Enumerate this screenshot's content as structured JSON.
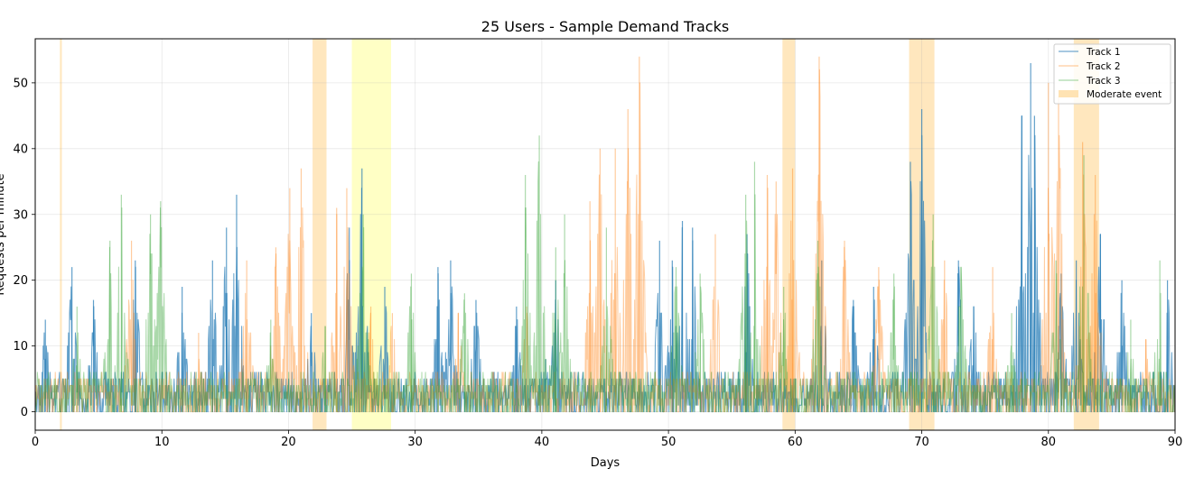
{
  "chart_data": {
    "type": "line",
    "title": "25 Users - Sample Demand Tracks",
    "xlabel": "Days",
    "ylabel": "Requests per minute",
    "xlim": [
      0,
      90
    ],
    "ylim": [
      -2.8,
      56.7
    ],
    "xticks": [
      0,
      10,
      20,
      30,
      40,
      50,
      60,
      70,
      80,
      90
    ],
    "yticks": [
      0,
      10,
      20,
      30,
      40,
      50
    ],
    "grid": true,
    "legend_position": "top-right",
    "series": [
      {
        "name": "Track 1",
        "color": "#1f77b4",
        "opacity": 0.7,
        "peaks": [
          [
            0.8,
            14
          ],
          [
            2.9,
            22
          ],
          [
            4.6,
            17
          ],
          [
            7.9,
            23
          ],
          [
            11.6,
            19
          ],
          [
            14.0,
            23
          ],
          [
            15.1,
            28
          ],
          [
            15.9,
            33
          ],
          [
            21.8,
            15
          ],
          [
            24.8,
            28
          ],
          [
            25.8,
            37
          ],
          [
            27.6,
            19
          ],
          [
            31.8,
            22
          ],
          [
            32.8,
            23
          ],
          [
            34.8,
            17
          ],
          [
            38.0,
            16
          ],
          [
            40.3,
            8
          ],
          [
            41.1,
            20
          ],
          [
            49.3,
            26
          ],
          [
            50.3,
            23
          ],
          [
            51.1,
            29
          ],
          [
            51.9,
            28
          ],
          [
            56.2,
            27
          ],
          [
            62.1,
            23
          ],
          [
            64.6,
            17
          ],
          [
            66.2,
            19
          ],
          [
            69.1,
            38
          ],
          [
            70.0,
            46
          ],
          [
            72.9,
            23
          ],
          [
            74.1,
            16
          ],
          [
            77.9,
            45
          ],
          [
            78.6,
            53
          ],
          [
            78.9,
            45
          ],
          [
            81.0,
            21
          ],
          [
            82.2,
            23
          ],
          [
            84.1,
            27
          ],
          [
            85.8,
            20
          ],
          [
            89.4,
            20
          ]
        ]
      },
      {
        "name": "Track 2",
        "color": "#ff7f0e",
        "opacity": 0.4,
        "peaks": [
          [
            7.6,
            26
          ],
          [
            12.9,
            12
          ],
          [
            16.7,
            23
          ],
          [
            19.0,
            25
          ],
          [
            20.1,
            34
          ],
          [
            21.0,
            37
          ],
          [
            23.8,
            31
          ],
          [
            24.6,
            34
          ],
          [
            26.5,
            16
          ],
          [
            28.2,
            15
          ],
          [
            33.4,
            15
          ],
          [
            38.8,
            16
          ],
          [
            43.8,
            32
          ],
          [
            44.6,
            40
          ],
          [
            45.8,
            40
          ],
          [
            46.8,
            46
          ],
          [
            47.7,
            54
          ],
          [
            53.7,
            27
          ],
          [
            57.8,
            36
          ],
          [
            58.5,
            35
          ],
          [
            59.8,
            37
          ],
          [
            61.9,
            54
          ],
          [
            63.9,
            26
          ],
          [
            66.6,
            22
          ],
          [
            71.8,
            23
          ],
          [
            75.6,
            22
          ],
          [
            80.0,
            50
          ],
          [
            80.8,
            48
          ],
          [
            82.7,
            41
          ],
          [
            83.7,
            36
          ],
          [
            87.7,
            11
          ]
        ]
      },
      {
        "name": "Track 3",
        "color": "#2ca02c",
        "opacity": 0.4,
        "peaks": [
          [
            3.3,
            16
          ],
          [
            5.9,
            26
          ],
          [
            6.8,
            33
          ],
          [
            9.1,
            30
          ],
          [
            9.9,
            32
          ],
          [
            18.6,
            14
          ],
          [
            22.9,
            13
          ],
          [
            25.9,
            30
          ],
          [
            29.7,
            21
          ],
          [
            33.9,
            18
          ],
          [
            38.7,
            36
          ],
          [
            39.8,
            42
          ],
          [
            41.1,
            25
          ],
          [
            41.8,
            30
          ],
          [
            45.1,
            28
          ],
          [
            50.6,
            22
          ],
          [
            52.5,
            21
          ],
          [
            56.1,
            33
          ],
          [
            56.8,
            38
          ],
          [
            59.1,
            19
          ],
          [
            61.8,
            26
          ],
          [
            67.8,
            21
          ],
          [
            70.9,
            30
          ],
          [
            73.1,
            22
          ],
          [
            77.1,
            15
          ],
          [
            80.6,
            23
          ],
          [
            82.8,
            39
          ],
          [
            86.5,
            14
          ],
          [
            88.8,
            23
          ]
        ]
      }
    ],
    "events": [
      {
        "name": "Moderate event",
        "start": 1.95,
        "end": 2.1,
        "color": "#ffe3b3"
      },
      {
        "name": "Moderate event",
        "start": 21.9,
        "end": 23.0,
        "color": "#ffe3b3"
      },
      {
        "name": "",
        "start": 25.0,
        "end": 28.1,
        "color": "#ffffbb"
      },
      {
        "name": "Moderate event",
        "start": 59.0,
        "end": 60.0,
        "color": "#ffe3b3"
      },
      {
        "name": "Moderate event",
        "start": 69.0,
        "end": 71.0,
        "color": "#ffe3b3"
      },
      {
        "name": "Moderate event",
        "start": 82.0,
        "end": 84.0,
        "color": "#ffe3b3"
      }
    ],
    "legend": [
      "Track 1",
      "Track 2",
      "Track 3",
      "Moderate event"
    ]
  }
}
